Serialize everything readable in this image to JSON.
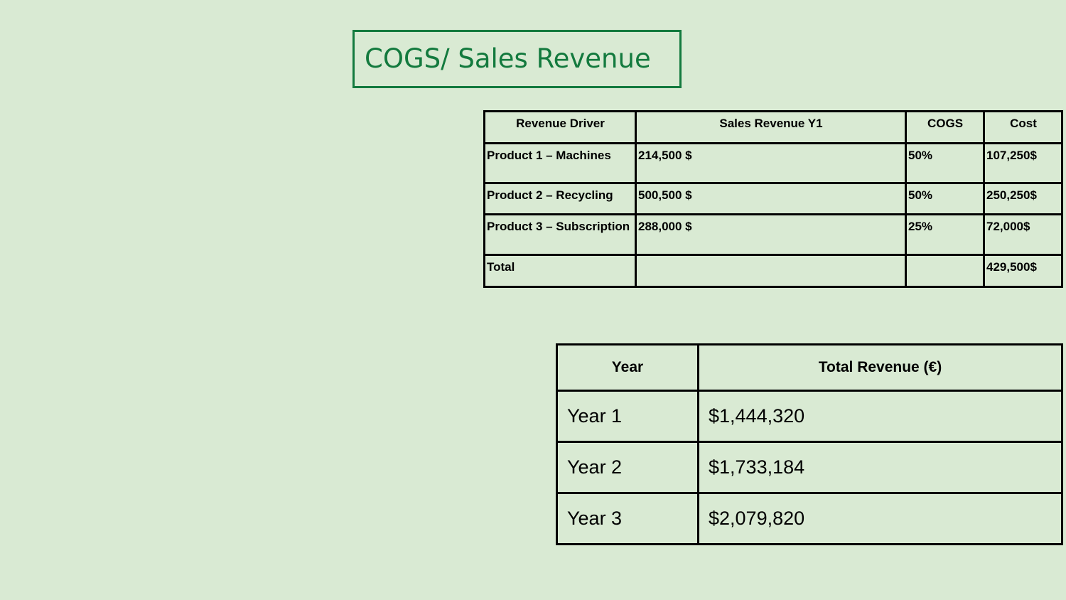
{
  "title": "COGS/ Sales Revenue",
  "cogs_table": {
    "headers": [
      "Revenue Driver",
      "Sales Revenue Y1",
      "COGS",
      "Cost"
    ],
    "rows": [
      {
        "driver": "Product 1 – Machines",
        "revenue": "214,500 $",
        "cogs": "50%",
        "cost": "107,250$"
      },
      {
        "driver": "Product 2 – Recycling",
        "revenue": "500,500 $",
        "cogs": "50%",
        "cost": "250,250$"
      },
      {
        "driver": "Product 3 – Subscription",
        "revenue": "288,000 $",
        "cogs": "25%",
        "cost": "72,000$"
      },
      {
        "driver": "Total",
        "revenue": "",
        "cogs": "",
        "cost": "429,500$"
      }
    ]
  },
  "revenue_table": {
    "headers": [
      "Year",
      "Total Revenue (€)"
    ],
    "rows": [
      {
        "year": "Year 1",
        "total": "$1,444,320"
      },
      {
        "year": "Year 2",
        "total": "$1,733,184"
      },
      {
        "year": "Year 3",
        "total": "$2,079,820"
      }
    ]
  }
}
